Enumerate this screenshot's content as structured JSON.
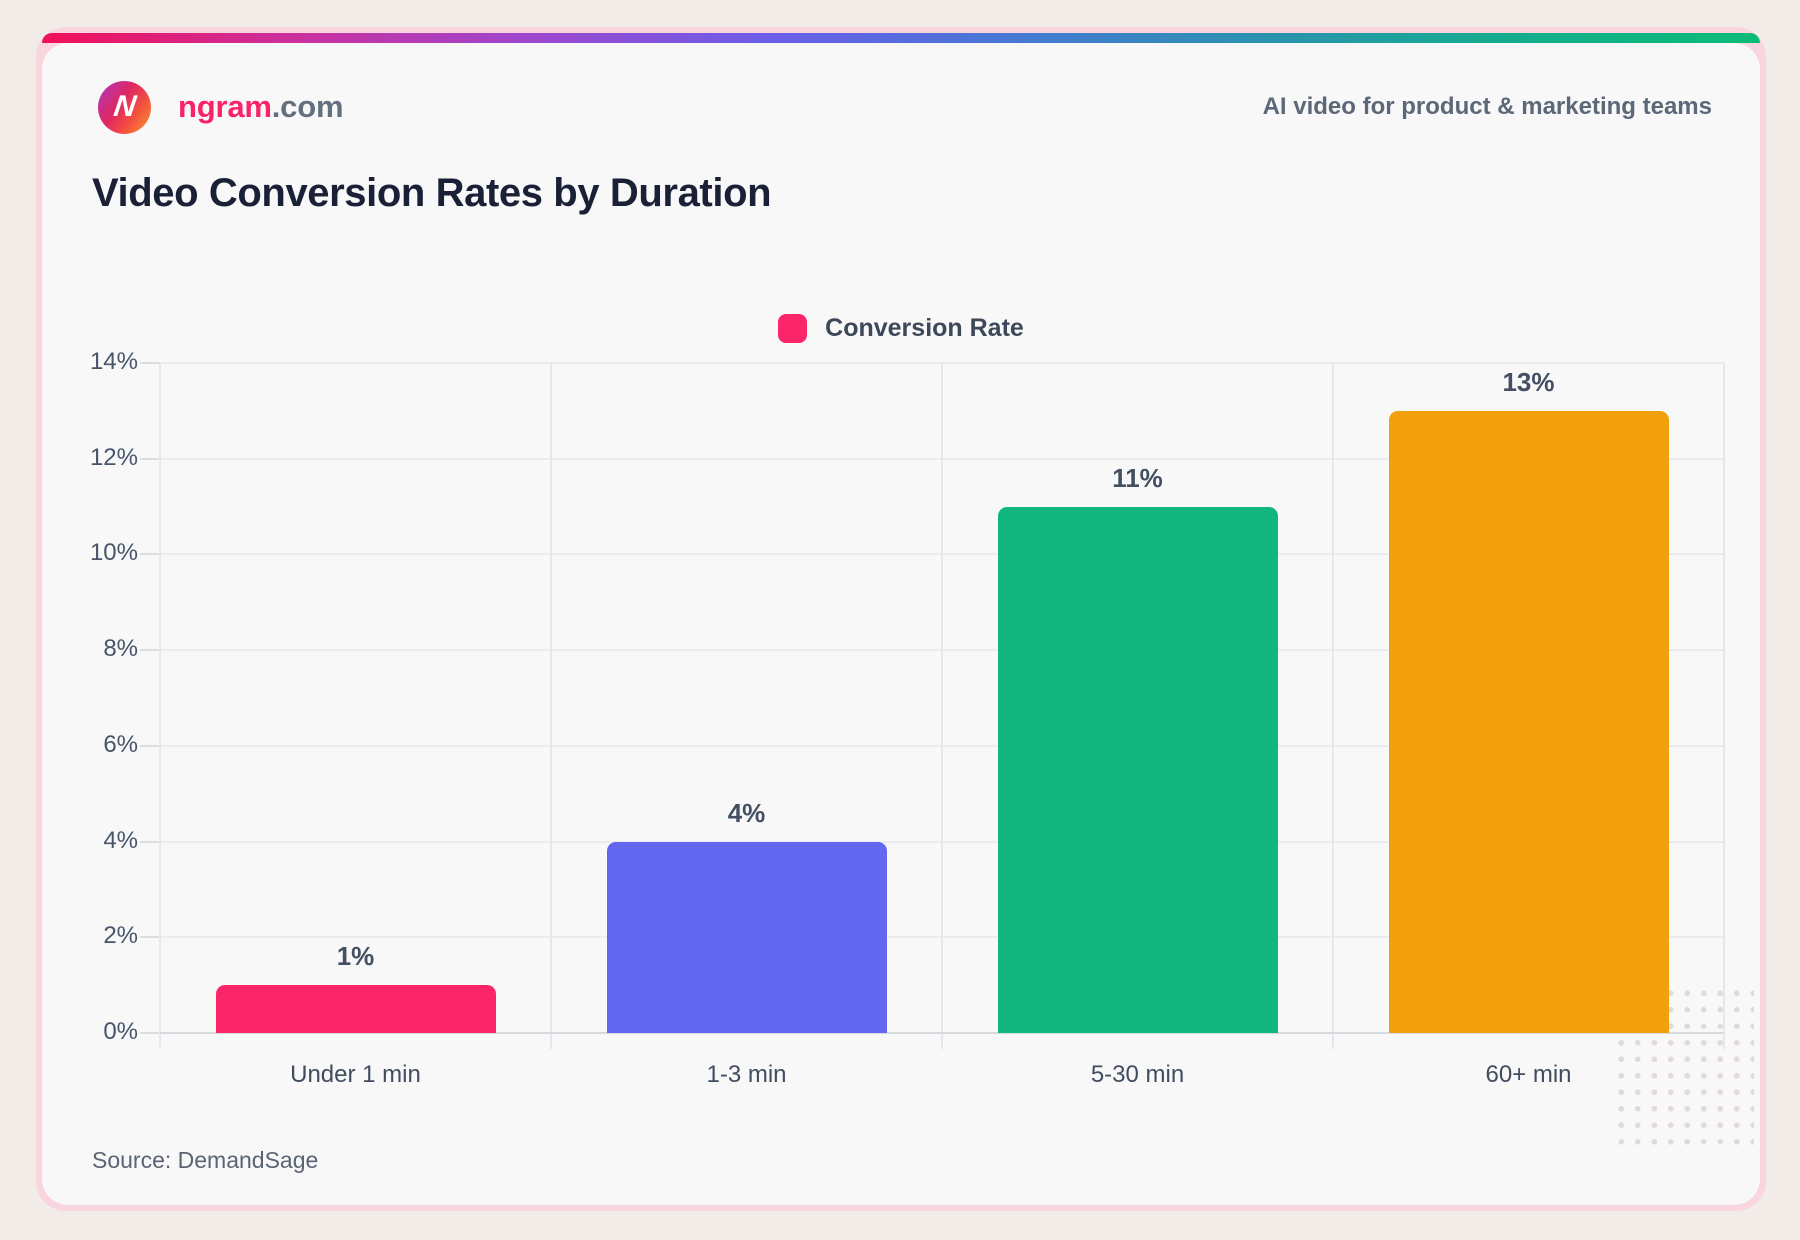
{
  "header": {
    "logo_letter": "N",
    "brand_name": "ngram",
    "brand_domain": ".com",
    "tagline": "AI video for product & marketing teams"
  },
  "chart_data": {
    "type": "bar",
    "title": "Video Conversion Rates by Duration",
    "legend": {
      "label": "Conversion Rate",
      "color": "#FB2669",
      "position": "top-center"
    },
    "categories": [
      "Under 1 min",
      "1-3 min",
      "5-30 min",
      "60+ min"
    ],
    "values": [
      1,
      4,
      11,
      13
    ],
    "value_labels": [
      "1%",
      "4%",
      "11%",
      "13%"
    ],
    "bar_colors": [
      "#FB2669",
      "#6366EE",
      "#12B77F",
      "#F2A00C"
    ],
    "ylim": [
      0,
      14
    ],
    "ytick_step": 2,
    "ytick_labels": [
      "0%",
      "2%",
      "4%",
      "6%",
      "8%",
      "10%",
      "12%",
      "14%"
    ],
    "grid": true,
    "xlabel": "",
    "ylabel": ""
  },
  "footer": {
    "source": "Source: DemandSage"
  },
  "colors": {
    "page_bg": "#F1ECE7",
    "card_bg": "#F8F8F9",
    "frame_pink": "#F9D5DF",
    "brand_pink": "#FB2367",
    "title_text": "#1A2136",
    "axis_text": "#47556A",
    "gradient_bar": [
      "#F01059",
      "#CC2F9B",
      "#9C47CE",
      "#6A5FE8",
      "#4579D2",
      "#2B93AE",
      "#14AD8C",
      "#0CBA76"
    ]
  }
}
